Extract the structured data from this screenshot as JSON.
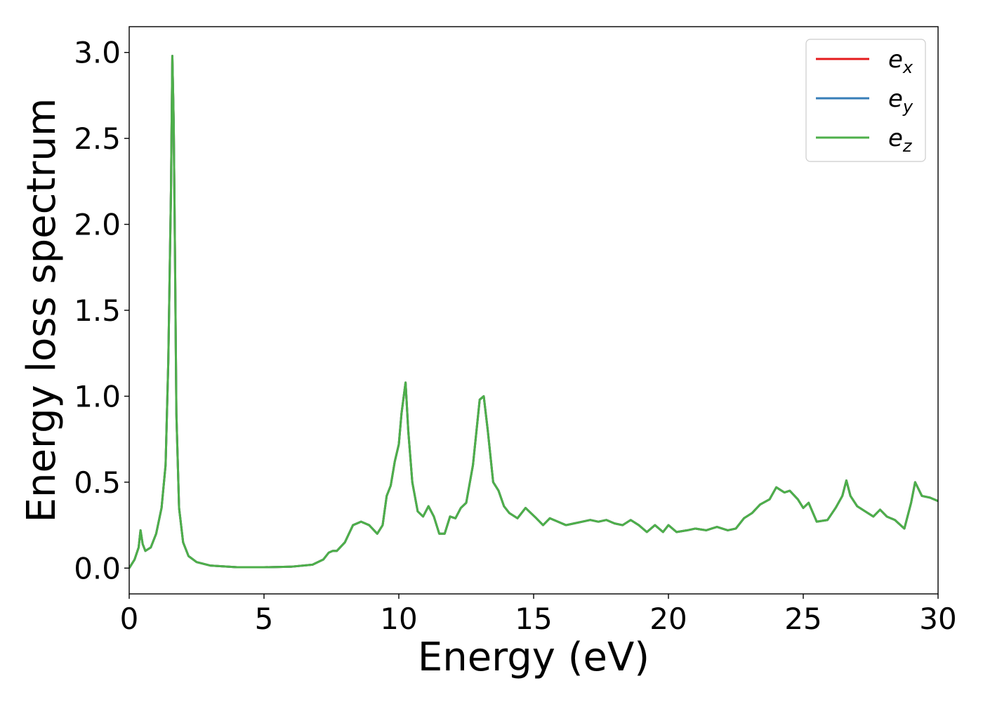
{
  "chart_data": {
    "type": "line",
    "title": "",
    "xlabel": "Energy (eV)",
    "ylabel": "Energy loss spectrum",
    "xlim": [
      0,
      30
    ],
    "ylim": [
      -0.15,
      3.15
    ],
    "xticks": [
      0,
      5,
      10,
      15,
      20,
      25,
      30
    ],
    "xtick_labels": [
      "0",
      "5",
      "10",
      "15",
      "20",
      "25",
      "30"
    ],
    "yticks": [
      0.0,
      0.5,
      1.0,
      1.5,
      2.0,
      2.5,
      3.0
    ],
    "ytick_labels": [
      "0.0",
      "0.5",
      "1.0",
      "1.5",
      "2.0",
      "2.5",
      "3.0"
    ],
    "grid": false,
    "legend_position": "top-right",
    "series": [
      {
        "name": "e_x",
        "label_base": "e",
        "label_sub": "x",
        "color": "#e41a1c"
      },
      {
        "name": "e_y",
        "label_base": "e",
        "label_sub": "y",
        "color": "#377eb8"
      },
      {
        "name": "e_z",
        "label_base": "e",
        "label_sub": "z",
        "color": "#4daf4a"
      }
    ],
    "x": [
      0.0,
      0.2,
      0.35,
      0.42,
      0.5,
      0.6,
      0.8,
      1.0,
      1.2,
      1.35,
      1.45,
      1.55,
      1.6,
      1.65,
      1.7,
      1.75,
      1.85,
      2.0,
      2.2,
      2.5,
      3.0,
      4.0,
      5.0,
      6.0,
      6.8,
      7.2,
      7.4,
      7.55,
      7.7,
      8.0,
      8.3,
      8.6,
      8.9,
      9.2,
      9.4,
      9.55,
      9.7,
      9.85,
      10.0,
      10.1,
      10.25,
      10.35,
      10.5,
      10.7,
      10.9,
      11.1,
      11.3,
      11.5,
      11.7,
      11.9,
      12.1,
      12.3,
      12.5,
      12.75,
      13.0,
      13.15,
      13.3,
      13.5,
      13.7,
      13.9,
      14.1,
      14.4,
      14.7,
      14.9,
      15.1,
      15.35,
      15.6,
      15.9,
      16.2,
      16.5,
      16.8,
      17.1,
      17.4,
      17.7,
      18.0,
      18.3,
      18.6,
      18.9,
      19.2,
      19.5,
      19.8,
      20.0,
      20.3,
      20.7,
      21.0,
      21.4,
      21.8,
      22.2,
      22.5,
      22.8,
      23.1,
      23.4,
      23.75,
      24.0,
      24.3,
      24.5,
      24.8,
      25.0,
      25.2,
      25.5,
      25.9,
      26.2,
      26.45,
      26.6,
      26.75,
      27.0,
      27.3,
      27.6,
      27.85,
      28.1,
      28.4,
      28.75,
      29.0,
      29.15,
      29.4,
      29.7,
      30.0
    ],
    "y": [
      0.0,
      0.05,
      0.12,
      0.22,
      0.14,
      0.1,
      0.12,
      0.2,
      0.35,
      0.6,
      1.2,
      2.2,
      2.98,
      2.6,
      1.8,
      0.9,
      0.35,
      0.15,
      0.07,
      0.035,
      0.015,
      0.005,
      0.005,
      0.008,
      0.02,
      0.05,
      0.09,
      0.1,
      0.1,
      0.15,
      0.25,
      0.27,
      0.25,
      0.2,
      0.25,
      0.42,
      0.48,
      0.62,
      0.72,
      0.9,
      1.08,
      0.8,
      0.5,
      0.33,
      0.3,
      0.36,
      0.3,
      0.2,
      0.2,
      0.3,
      0.29,
      0.35,
      0.38,
      0.6,
      0.98,
      1.0,
      0.8,
      0.5,
      0.45,
      0.36,
      0.32,
      0.29,
      0.35,
      0.32,
      0.29,
      0.25,
      0.29,
      0.27,
      0.25,
      0.26,
      0.27,
      0.28,
      0.27,
      0.28,
      0.26,
      0.25,
      0.28,
      0.25,
      0.21,
      0.25,
      0.21,
      0.25,
      0.21,
      0.22,
      0.23,
      0.22,
      0.24,
      0.22,
      0.23,
      0.29,
      0.32,
      0.37,
      0.4,
      0.47,
      0.44,
      0.45,
      0.4,
      0.35,
      0.38,
      0.27,
      0.28,
      0.35,
      0.42,
      0.51,
      0.42,
      0.36,
      0.33,
      0.3,
      0.34,
      0.3,
      0.28,
      0.23,
      0.38,
      0.5,
      0.42,
      0.41,
      0.39
    ]
  }
}
